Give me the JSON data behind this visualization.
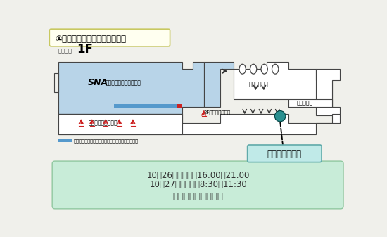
{
  "title": "①宮崎空港出口特設カウンター",
  "floor_label": "宮崎空港",
  "floor_num": "1F",
  "sna_text": "SNA",
  "checkin_counter_text": "チェックインカウンター",
  "checkin_lobby": "チェックインロビー",
  "departure_lobby": "2F：出発ロビーへ",
  "baggage_claim": "手荷物受取り",
  "arrival_lobby": "到着ロビー",
  "special_counter": "特設カウンター",
  "auto_checkin": "自動チェックイン機及び自動航空券発売機設置場所",
  "info_line1": "10月26日（火）　16:00～21:00",
  "info_line2": "10月27日（水）　8:30～11:30",
  "info_line3": "のみカウンター設置",
  "bg_color": "#f0f0eb",
  "title_box_color": "#fffff0",
  "title_box_border": "#c8c860",
  "map_area_color": "#b8d4e8",
  "map_border_color": "#444444",
  "info_box_color": "#c8ecd8",
  "info_box_border": "#90c8a0",
  "red_color": "#cc2222",
  "teal_color": "#2a9090",
  "blue_bar_color": "#5599cc",
  "counter_box_color": "#c0eae8",
  "counter_box_border": "#60aaaa",
  "white": "#ffffff",
  "arrow_color": "#333333"
}
